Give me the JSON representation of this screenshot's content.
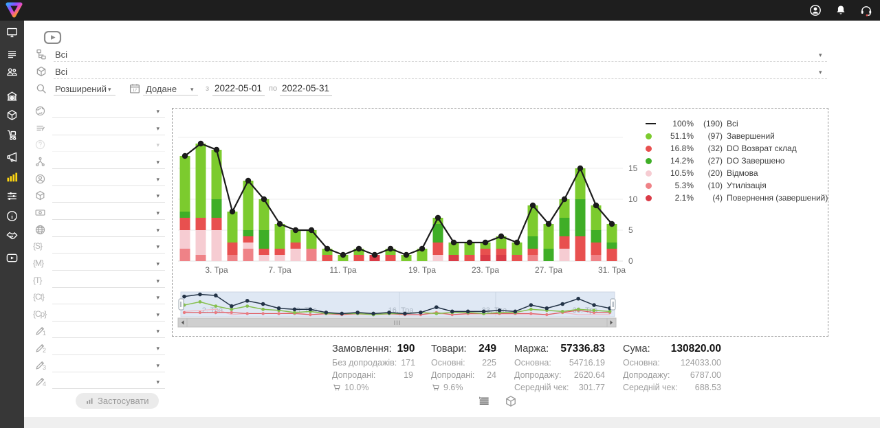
{
  "topbar": {
    "icons": [
      {
        "name": "account"
      },
      {
        "name": "notifications"
      },
      {
        "name": "support"
      }
    ]
  },
  "sidebar": {
    "items": [
      {
        "icon": "monitor"
      },
      {
        "icon": "rows"
      },
      {
        "icon": "people"
      },
      {
        "icon": "building"
      },
      {
        "icon": "box"
      },
      {
        "icon": "dolly"
      },
      {
        "icon": "megaphone"
      },
      {
        "icon": "chart",
        "active": true
      },
      {
        "icon": "sliders"
      },
      {
        "icon": "info"
      },
      {
        "icon": "handshake"
      },
      {
        "icon": "video"
      }
    ]
  },
  "filters": {
    "status_value": "Всі",
    "product_value": "Всі",
    "search_mode": "Розширений",
    "date_field": "Додане",
    "from_label": "з",
    "date_from": "2022-05-01",
    "to_label": "по",
    "date_to": "2022-05-31",
    "apply_label": "Застосувати",
    "rows": [
      {
        "icon": "earth"
      },
      {
        "icon": "filter-lines"
      },
      {
        "icon": "help",
        "disabled": true
      },
      {
        "icon": "hierarchy"
      },
      {
        "icon": "user-circle"
      },
      {
        "icon": "box3d"
      },
      {
        "icon": "money"
      },
      {
        "icon": "globe"
      },
      {
        "icon": "brace",
        "text": "{S}"
      },
      {
        "icon": "brace",
        "text": "{M}"
      },
      {
        "icon": "brace",
        "text": "{T}"
      },
      {
        "icon": "brace",
        "text": "{Ct}"
      },
      {
        "icon": "brace",
        "text": "{Cp}"
      },
      {
        "icon": "pencil",
        "num": "1"
      },
      {
        "icon": "pencil",
        "num": "2"
      },
      {
        "icon": "pencil",
        "num": "3"
      },
      {
        "icon": "pencil",
        "num": "4"
      }
    ]
  },
  "chart_data": {
    "type": "bar",
    "stacked": true,
    "days": [
      "1",
      "2",
      "3",
      "4",
      "5",
      "6",
      "7",
      "8",
      "9",
      "10",
      "11",
      "12",
      "13",
      "15",
      "17",
      "19",
      "20",
      "21",
      "22",
      "23",
      "24",
      "25",
      "26",
      "27",
      "28",
      "29",
      "30",
      "31"
    ],
    "ticks": [
      {
        "slot": 2,
        "label": "3. Тра"
      },
      {
        "slot": 6,
        "label": "7. Тра"
      },
      {
        "slot": 10,
        "label": "11. Тра"
      },
      {
        "slot": 15,
        "label": "19. Тра"
      },
      {
        "slot": 19,
        "label": "23. Тра"
      },
      {
        "slot": 23,
        "label": "27. Тра"
      },
      {
        "slot": 27,
        "label": "31. Тра"
      }
    ],
    "yticks": [
      0,
      5,
      10,
      15
    ],
    "ylim": [
      0,
      20
    ],
    "series": [
      {
        "name": "Всі",
        "type": "line",
        "color": "#1b1b1b",
        "values": [
          17,
          19,
          18,
          8,
          13,
          10,
          6,
          5,
          5,
          2,
          1,
          2,
          1,
          2,
          1,
          2,
          7,
          3,
          3,
          3,
          4,
          3,
          9,
          6,
          10,
          15,
          9,
          6
        ]
      },
      {
        "name": "Завершений",
        "type": "bar",
        "color": "#7ccb2e",
        "values": [
          9,
          12,
          8,
          5,
          8,
          5,
          4,
          2,
          3,
          1,
          1,
          1,
          0,
          1,
          1,
          2,
          1,
          2,
          2,
          1,
          2,
          2,
          5,
          4,
          3,
          5,
          4,
          3
        ]
      },
      {
        "name": "DO Завершено",
        "type": "bar",
        "color": "#3fae27",
        "values": [
          1,
          0,
          3,
          0,
          1,
          3,
          0,
          0,
          0,
          0,
          0,
          0,
          0,
          0,
          0,
          0,
          3,
          0,
          0,
          0,
          0,
          0,
          2,
          2,
          3,
          6,
          2,
          1
        ]
      },
      {
        "name": "DO Возврат склад",
        "type": "bar",
        "color": "#e8504f",
        "values": [
          2,
          2,
          2,
          2,
          1,
          1,
          1,
          1,
          0,
          1,
          0,
          1,
          0,
          1,
          0,
          0,
          2,
          0,
          1,
          1,
          1,
          1,
          1,
          0,
          2,
          4,
          2,
          2
        ]
      },
      {
        "name": "Відмова",
        "type": "bar",
        "color": "#f6ccd2",
        "values": [
          3,
          4,
          5,
          0,
          1,
          1,
          1,
          2,
          0,
          0,
          0,
          0,
          0,
          0,
          0,
          0,
          1,
          0,
          0,
          0,
          0,
          0,
          0,
          0,
          2,
          0,
          0,
          0
        ]
      },
      {
        "name": "Утилізація",
        "type": "bar",
        "color": "#ef8287",
        "values": [
          2,
          1,
          0,
          1,
          2,
          0,
          0,
          0,
          2,
          0,
          0,
          0,
          0,
          0,
          0,
          0,
          0,
          0,
          0,
          0,
          0,
          0,
          1,
          0,
          0,
          0,
          1,
          0
        ]
      },
      {
        "name": "Повернення (завершений)",
        "type": "bar",
        "color": "#da3b47",
        "values": [
          0,
          0,
          0,
          0,
          0,
          0,
          0,
          0,
          0,
          0,
          0,
          0,
          1,
          0,
          0,
          0,
          0,
          1,
          0,
          1,
          1,
          0,
          0,
          0,
          0,
          0,
          0,
          0
        ]
      }
    ],
    "bar_stack_order_bottom_to_top": [
      "Повернення (завершений)",
      "Утилізація",
      "Відмова",
      "DO Возврат склад",
      "DO Завершено",
      "Завершений"
    ],
    "legend": [
      {
        "pct": "100%",
        "count": "(190)",
        "label": "Всі",
        "swatch": "line",
        "color": "#1b1b1b"
      },
      {
        "pct": "51.1%",
        "count": "(97)",
        "label": "Завершений",
        "swatch": "dot",
        "color": "#7ccb2e"
      },
      {
        "pct": "16.8%",
        "count": "(32)",
        "label": "DO Возврат склад",
        "swatch": "dot",
        "color": "#e8504f"
      },
      {
        "pct": "14.2%",
        "count": "(27)",
        "label": "DO Завершено",
        "swatch": "dot",
        "color": "#3fae27"
      },
      {
        "pct": "10.5%",
        "count": "(20)",
        "label": "Відмова",
        "swatch": "dot",
        "color": "#f6ccd2"
      },
      {
        "pct": "5.3%",
        "count": "(10)",
        "label": "Утилізація",
        "swatch": "dot",
        "color": "#ef8287"
      },
      {
        "pct": "2.1%",
        "count": "(4)",
        "label": "Повернення (завершений)",
        "swatch": "dot",
        "color": "#da3b47"
      }
    ],
    "navigator": {
      "labels": [
        "2. Тра",
        "9. Тра",
        "16. Тра",
        "23. Тра",
        "30. Тра"
      ]
    }
  },
  "stats": {
    "cards": [
      {
        "title": "Замовлення:",
        "value": "190",
        "rows": [
          {
            "label": "Без допродажів:",
            "value": "171"
          },
          {
            "label": "Допродані:",
            "value": "19"
          }
        ],
        "cart": "10.0%"
      },
      {
        "title": "Товари:",
        "value": "249",
        "rows": [
          {
            "label": "Основні:",
            "value": "225"
          },
          {
            "label": "Допродані:",
            "value": "24"
          }
        ],
        "cart": "9.6%"
      },
      {
        "title": "Маржа:",
        "value": "57336.83",
        "rows": [
          {
            "label": "Основна:",
            "value": "54716.19"
          },
          {
            "label": "Допродажу:",
            "value": "2620.64"
          },
          {
            "label": "Середній чек:",
            "value": "301.77"
          }
        ]
      },
      {
        "title": "Сума:",
        "value": "130820.00",
        "rows": [
          {
            "label": "Основна:",
            "value": "124033.00"
          },
          {
            "label": "Допродажу:",
            "value": "6787.00"
          },
          {
            "label": "Середній чек:",
            "value": "688.53"
          }
        ]
      }
    ]
  }
}
